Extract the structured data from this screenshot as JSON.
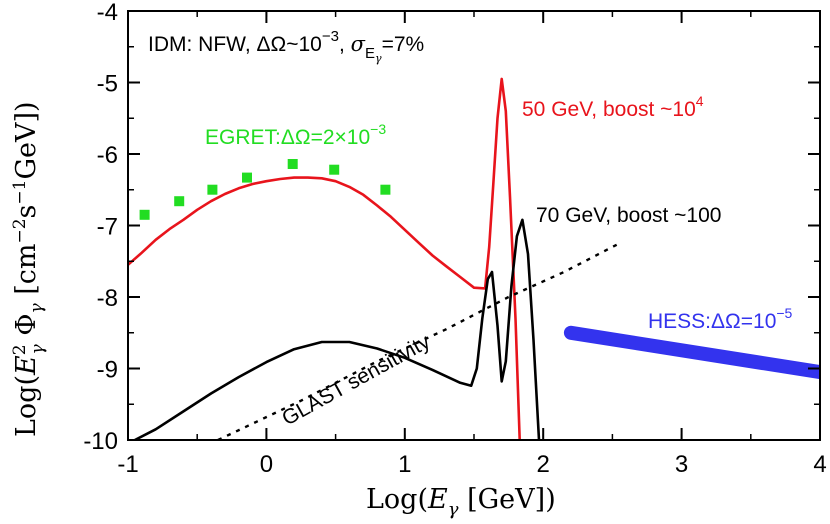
{
  "chart_data": {
    "type": "line",
    "title": "",
    "xlim": [
      -1,
      4
    ],
    "ylim": [
      -10,
      -4
    ],
    "x_ticks": [
      "-1",
      "0",
      "1",
      "2",
      "3",
      "4"
    ],
    "y_ticks": [
      "-4",
      "-5",
      "-6",
      "-7",
      "-8",
      "-9",
      "-10"
    ],
    "xlabel": {
      "prefix": "Log(",
      "var": "E",
      "sub": "γ",
      "unit": " [GeV])"
    },
    "ylabel": {
      "prefix": "Log(",
      "var": "E",
      "sup": "2",
      "sub": "γ",
      "phi": " Φ",
      "phisub": "γ",
      "units": " [cm",
      "exp1": "−2",
      "s": "s",
      "exp2": "−1",
      "end": "GeV])"
    },
    "annotations": {
      "header": {
        "main": "IDM: NFW, ΔΩ~10",
        "exp": "−3",
        "sep": ", ",
        "sigma": "σ",
        "sub": "E",
        "subsub": "γ",
        "end": "=7%"
      },
      "egret": {
        "main": "EGRET:ΔΩ=2×10",
        "exp": "−3"
      },
      "red": {
        "main": "50 GeV, boost ~10",
        "exp": "4"
      },
      "black": {
        "text": "70 GeV, boost ~100"
      },
      "hess": {
        "main": "HESS:ΔΩ=10",
        "exp": "−5"
      },
      "glast": {
        "text": "GLAST sensitivity"
      }
    },
    "colors": {
      "red": "#e8141c",
      "black": "#000000",
      "green": "#22dd22",
      "blue": "#3333ee",
      "axis": "#000000"
    },
    "series": [
      {
        "id": "red",
        "x": [
          -1,
          -0.9,
          -0.8,
          -0.7,
          -0.6,
          -0.5,
          -0.4,
          -0.3,
          -0.2,
          -0.1,
          0,
          0.1,
          0.2,
          0.3,
          0.4,
          0.5,
          0.6,
          0.7,
          0.8,
          0.9,
          1.0,
          1.1,
          1.2,
          1.3,
          1.4,
          1.5,
          1.58,
          1.61,
          1.64,
          1.67,
          1.7,
          1.73,
          1.76,
          1.8,
          1.83
        ],
        "y": [
          -7.55,
          -7.38,
          -7.2,
          -7.05,
          -6.92,
          -6.78,
          -6.66,
          -6.56,
          -6.48,
          -6.42,
          -6.38,
          -6.35,
          -6.33,
          -6.33,
          -6.34,
          -6.38,
          -6.46,
          -6.57,
          -6.72,
          -6.88,
          -7.06,
          -7.24,
          -7.42,
          -7.57,
          -7.72,
          -7.87,
          -7.88,
          -7.3,
          -6.4,
          -5.5,
          -4.95,
          -5.4,
          -6.6,
          -8.3,
          -10
        ]
      },
      {
        "id": "black",
        "x": [
          -0.95,
          -0.8,
          -0.6,
          -0.4,
          -0.2,
          0,
          0.2,
          0.4,
          0.6,
          0.8,
          1.0,
          1.2,
          1.4,
          1.48,
          1.52,
          1.56,
          1.6,
          1.63,
          1.67,
          1.7,
          1.73,
          1.77,
          1.81,
          1.85,
          1.89,
          1.93,
          1.97
        ],
        "y": [
          -10,
          -9.85,
          -9.6,
          -9.35,
          -9.12,
          -8.91,
          -8.73,
          -8.63,
          -8.63,
          -8.72,
          -8.85,
          -9.02,
          -9.2,
          -9.24,
          -9.0,
          -8.3,
          -7.75,
          -7.65,
          -8.4,
          -9.18,
          -8.9,
          -7.85,
          -7.15,
          -6.92,
          -7.4,
          -8.6,
          -10
        ]
      },
      {
        "id": "glast",
        "dashed": true,
        "x": [
          -0.35,
          0.25,
          0.8,
          1.3,
          1.75,
          2.15,
          2.55
        ],
        "y": [
          -10,
          -9.45,
          -8.9,
          -8.45,
          -8.0,
          -7.65,
          -7.25
        ]
      },
      {
        "id": "hess",
        "x": [
          2.2,
          4
        ],
        "y": [
          -8.5,
          -9.05
        ]
      }
    ],
    "egret_points": {
      "x": [
        -0.88,
        -0.63,
        -0.39,
        -0.14,
        0.19,
        0.49,
        0.86
      ],
      "y": [
        -6.85,
        -6.66,
        -6.5,
        -6.33,
        -6.14,
        -6.22,
        -6.5
      ]
    }
  }
}
